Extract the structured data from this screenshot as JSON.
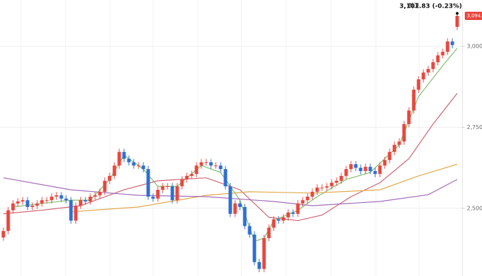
{
  "chart_data": {
    "type": "candlestick",
    "open": [
      2410,
      2430,
      2494,
      2515,
      2521,
      2525,
      2504,
      2508,
      2515,
      2525,
      2525,
      2536,
      2540,
      2530,
      2525,
      2462,
      2508,
      2525,
      2521,
      2536,
      2540,
      2551,
      2585,
      2600,
      2632,
      2674,
      2653,
      2642,
      2632,
      2632,
      2621,
      2536,
      2530,
      2557,
      2568,
      2568,
      2525,
      2568,
      2589,
      2600,
      2606,
      2632,
      2642,
      2642,
      2632,
      2632,
      2621,
      2568,
      2483,
      2515,
      2504,
      2445,
      2419,
      2334,
      2313,
      2408,
      2440,
      2466,
      2462,
      2472,
      2487,
      2483,
      2515,
      2525,
      2536,
      2551,
      2564,
      2564,
      2568,
      2579,
      2585,
      2600,
      2621,
      2636,
      2625,
      2615,
      2628,
      2615,
      2606,
      2632,
      2649,
      2674,
      2696,
      2706,
      2760,
      2802,
      2866,
      2898,
      2919,
      2930,
      2951,
      2972,
      2983,
      3015,
      3060
    ],
    "high": [
      2440,
      2504,
      2525,
      2531,
      2535,
      2535,
      2518,
      2525,
      2535,
      2535,
      2546,
      2550,
      2550,
      2540,
      2535,
      2518,
      2535,
      2535,
      2546,
      2550,
      2561,
      2595,
      2610,
      2642,
      2684,
      2684,
      2663,
      2652,
      2642,
      2642,
      2631,
      2546,
      2567,
      2578,
      2578,
      2578,
      2578,
      2599,
      2610,
      2616,
      2642,
      2652,
      2652,
      2652,
      2642,
      2642,
      2631,
      2578,
      2525,
      2525,
      2514,
      2455,
      2429,
      2344,
      2418,
      2450,
      2476,
      2476,
      2482,
      2497,
      2497,
      2525,
      2535,
      2546,
      2561,
      2574,
      2574,
      2578,
      2589,
      2595,
      2610,
      2631,
      2646,
      2646,
      2635,
      2638,
      2638,
      2625,
      2642,
      2659,
      2684,
      2706,
      2716,
      2770,
      2812,
      2876,
      2908,
      2929,
      2940,
      2961,
      2982,
      2993,
      3025,
      3025,
      3101.83
    ],
    "low": [
      2400,
      2420,
      2484,
      2505,
      2511,
      2494,
      2494,
      2498,
      2505,
      2515,
      2515,
      2526,
      2520,
      2515,
      2452,
      2452,
      2498,
      2511,
      2511,
      2526,
      2530,
      2541,
      2575,
      2590,
      2622,
      2643,
      2632,
      2622,
      2622,
      2611,
      2526,
      2520,
      2520,
      2547,
      2558,
      2515,
      2515,
      2558,
      2579,
      2590,
      2596,
      2622,
      2632,
      2622,
      2622,
      2611,
      2558,
      2473,
      2473,
      2494,
      2435,
      2409,
      2324,
      2303,
      2303,
      2398,
      2430,
      2452,
      2452,
      2462,
      2473,
      2473,
      2505,
      2515,
      2526,
      2541,
      2554,
      2554,
      2558,
      2569,
      2575,
      2590,
      2611,
      2615,
      2605,
      2605,
      2605,
      2596,
      2596,
      2622,
      2639,
      2664,
      2686,
      2696,
      2750,
      2792,
      2856,
      2888,
      2909,
      2920,
      2941,
      2962,
      2973,
      2994,
      3050
    ],
    "close": [
      2430,
      2494,
      2515,
      2521,
      2525,
      2504,
      2508,
      2515,
      2525,
      2525,
      2536,
      2540,
      2530,
      2525,
      2462,
      2508,
      2525,
      2521,
      2536,
      2540,
      2551,
      2585,
      2600,
      2632,
      2674,
      2653,
      2642,
      2632,
      2632,
      2621,
      2536,
      2530,
      2557,
      2568,
      2568,
      2525,
      2568,
      2589,
      2600,
      2606,
      2632,
      2642,
      2642,
      2632,
      2632,
      2621,
      2568,
      2483,
      2515,
      2504,
      2445,
      2419,
      2334,
      2313,
      2408,
      2440,
      2466,
      2462,
      2472,
      2487,
      2483,
      2515,
      2525,
      2536,
      2551,
      2564,
      2564,
      2568,
      2579,
      2585,
      2600,
      2621,
      2636,
      2625,
      2615,
      2628,
      2615,
      2606,
      2632,
      2649,
      2674,
      2696,
      2706,
      2760,
      2802,
      2866,
      2898,
      2919,
      2930,
      2951,
      2972,
      2983,
      3015,
      3004,
      3094
    ],
    "up_color": "#e8473f",
    "down_color": "#2f6fd3",
    "series": [
      {
        "color": "#7fbf6a",
        "x": [
          2,
          8,
          14,
          18,
          22,
          25,
          29,
          32,
          36,
          41,
          45,
          49,
          52,
          54,
          56,
          61,
          65,
          71,
          76,
          82,
          86,
          91,
          94
        ],
        "values": [
          2504,
          2515,
          2525,
          2525,
          2589,
          2664,
          2621,
          2568,
          2568,
          2632,
          2611,
          2525,
          2398,
          2408,
          2462,
          2494,
          2536,
          2589,
          2611,
          2696,
          2845,
          2940,
          2994
        ]
      },
      {
        "color": "#d0606e",
        "x": [
          0,
          8,
          16,
          25,
          32,
          42,
          49,
          55,
          61,
          66,
          72,
          78,
          84,
          89,
          94
        ],
        "values": [
          2483,
          2494,
          2508,
          2557,
          2585,
          2594,
          2557,
          2472,
          2462,
          2479,
          2536,
          2579,
          2653,
          2760,
          2855
        ]
      },
      {
        "color": "#e0a84a",
        "x": [
          14,
          28,
          42,
          51,
          64,
          78,
          86,
          94
        ],
        "values": [
          2489,
          2504,
          2540,
          2551,
          2547,
          2557,
          2600,
          2636
        ]
      },
      {
        "color": "#a36ab8",
        "x": [
          0,
          14,
          28,
          42,
          56,
          64,
          78,
          88,
          94
        ],
        "values": [
          2594,
          2557,
          2540,
          2536,
          2521,
          2508,
          2521,
          2542,
          2589
        ]
      }
    ],
    "xlim": [
      -0.7,
      95
    ],
    "ylim": [
      2291,
      3143
    ],
    "yticks": [
      {
        "value": 2500,
        "label": "2,500.00"
      },
      {
        "value": 2750,
        "label": "2,750.00"
      },
      {
        "value": 3000,
        "label": "3,000.00"
      }
    ],
    "grid": true,
    "annotation": {
      "prefix": "최고",
      "text": "3,101.83 (-0.23%)"
    },
    "last_label": "3,094.00"
  }
}
